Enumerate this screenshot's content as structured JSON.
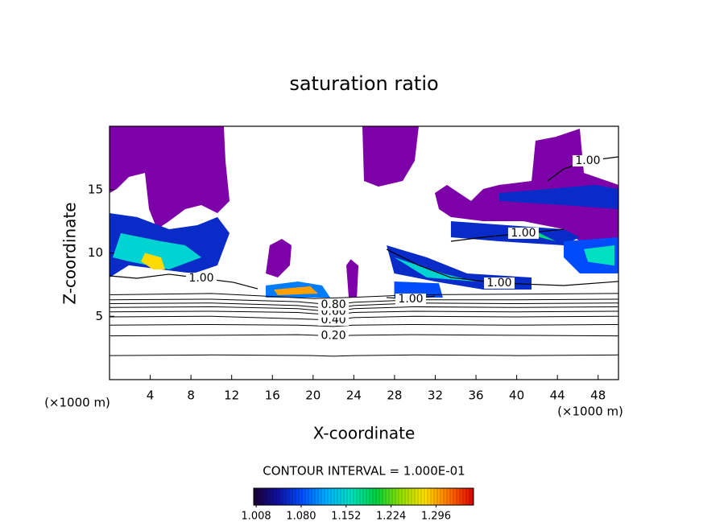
{
  "chart_data": {
    "type": "contour",
    "title": "saturation ratio",
    "x_label": "X-coordinate",
    "y_label": "Z-coordinate",
    "x_unit_left": "(×1000 m)",
    "x_unit_right": "(×1000 m)",
    "xlim": [
      0,
      50
    ],
    "ylim": [
      0,
      20
    ],
    "xticks": [
      4,
      8,
      12,
      16,
      20,
      24,
      28,
      32,
      36,
      40,
      44,
      48
    ],
    "yticks": [
      5,
      10,
      15
    ],
    "contour_interval_text": "CONTOUR INTERVAL = 1.000E-01",
    "colorbar_lim": [
      1.004,
      1.356
    ],
    "colorbar_ticks": [
      1.008,
      {
        "value": 1.08,
        "label": "1.080"
      },
      1.152,
      1.224,
      1.296
    ],
    "colormap": [
      "#1a0033",
      "#1010a0",
      "#0050ff",
      "#00b0ff",
      "#00e0c0",
      "#00d040",
      "#90e000",
      "#ffe000",
      "#ff7000",
      "#e00000"
    ],
    "below_color": "#7e00a8",
    "line_color": "#000000",
    "regions": [
      {
        "level": 1.0,
        "x": [
          0,
          11.23,
          11.39,
          11.79,
          10.6,
          9.02,
          7.44,
          5.85,
          4.67,
          3.88,
          3.48,
          1.9,
          0.71,
          0
        ],
        "y": [
          20,
          20,
          17.27,
          14.1,
          13.14,
          13.78,
          13.46,
          12.51,
          11.87,
          13.46,
          16.32,
          16,
          15.05,
          14.73
        ]
      },
      {
        "level": 1.0,
        "x": [
          24.84,
          25,
          26.42,
          28.8,
          29.98,
          30.38
        ],
        "y": [
          20,
          15.68,
          15.24,
          15.68,
          17.27,
          20
        ]
      },
      {
        "level": 1.0,
        "x": [
          33.23,
          33.15,
          34.34,
          35.52,
          36.71,
          38.29,
          41.46,
          41.85,
          43.83,
          46.2,
          46.6,
          50,
          50,
          50,
          46.2,
          44.62,
          40.66,
          36.71,
          33.54,
          32.36,
          31.96,
          33.15
        ],
        "y": [
          20,
          15.37,
          14.73,
          14.1,
          15.05,
          15.37,
          15.68,
          18.86,
          19.17,
          19.81,
          16.32,
          15.37,
          20,
          10.92,
          10.92,
          11.87,
          12.51,
          12.51,
          12.83,
          13.46,
          14.73,
          15.37
        ]
      },
      {
        "level": 1.0,
        "x": [
          15.35,
          15.74,
          16.93,
          17.88,
          17.72,
          16.53
        ],
        "y": [
          8.38,
          10.6,
          11.11,
          10.6,
          9.02,
          8.06
        ]
      },
      {
        "level": 1.0,
        "x": [
          23.26,
          23.7,
          24.45,
          24.3,
          23.5
        ],
        "y": [
          9.02,
          9.5,
          9.0,
          6.48,
          6.48
        ]
      },
      {
        "level": 1.06,
        "x": [
          0,
          2.69,
          5.85,
          8.62,
          10.6,
          11.79,
          10.6,
          8.23,
          5.06,
          1.9,
          0
        ],
        "y": [
          13.14,
          12.83,
          11.87,
          12.19,
          12.83,
          11.56,
          9.02,
          8.38,
          8.7,
          9.02,
          8.06
        ]
      },
      {
        "level": 1.15,
        "x": [
          1.11,
          5.06,
          7.44,
          9.02,
          5.85,
          1.9,
          0.32
        ],
        "y": [
          11.56,
          10.92,
          10.6,
          9.65,
          8.7,
          9.33,
          9.65
        ]
      },
      {
        "level": 1.28,
        "x": [
          3.48,
          5.06,
          5.46,
          4.27,
          3.09
        ],
        "y": [
          10.0,
          9.65,
          8.7,
          8.7,
          9.33
        ]
      },
      {
        "level": 1.1,
        "x": [
          15.35,
          18.51,
          20.89,
          21.68,
          15.35
        ],
        "y": [
          7.43,
          7.75,
          7.43,
          6.48,
          6.48
        ]
      },
      {
        "level": 1.3,
        "x": [
          16.14,
          19.7,
          20.49,
          16.53
        ],
        "y": [
          7.11,
          7.37,
          6.79,
          6.67
        ]
      },
      {
        "level": 1.06,
        "x": [
          27.22,
          31.17,
          35.13,
          41.46,
          41.46,
          36.71,
          31.96,
          27.97
        ],
        "y": [
          10.6,
          9.65,
          8.38,
          8.06,
          7.11,
          7.11,
          7.75,
          8.38
        ]
      },
      {
        "level": 1.15,
        "x": [
          27.97,
          32.75,
          35.92,
          31.17
        ],
        "y": [
          9.65,
          8.38,
          7.75,
          8.06
        ]
      },
      {
        "level": 1.08,
        "x": [
          27.97,
          32.36,
          32.75,
          27.97
        ],
        "y": [
          7.75,
          7.6,
          6.48,
          6.48
        ]
      },
      {
        "level": 1.06,
        "x": [
          33.54,
          39.08,
          44.62,
          46.2,
          44.62,
          38.29,
          33.54
        ],
        "y": [
          12.51,
          12.19,
          11.87,
          11.24,
          10.6,
          10.92,
          11.24
        ]
      },
      {
        "level": 1.18,
        "x": [
          39.87,
          42.25,
          43.83,
          42.25
        ],
        "y": [
          11.87,
          11.56,
          10.92,
          11.24
        ]
      },
      {
        "level": 1.08,
        "x": [
          44.62,
          50,
          50,
          46.2,
          44.62
        ],
        "y": [
          10.92,
          11.24,
          8.38,
          8.38,
          9.65
        ]
      },
      {
        "level": 1.16,
        "x": [
          46.6,
          49.6,
          49.6,
          47.0
        ],
        "y": [
          10.3,
          10.6,
          9.0,
          9.3
        ]
      },
      {
        "level": 1.06,
        "x": [
          38.29,
          43.04,
          47.78,
          50,
          50,
          44.62,
          38.29
        ],
        "y": [
          14.73,
          15.05,
          15.37,
          15.05,
          13.46,
          13.78,
          14.1
        ]
      }
    ],
    "contours": [
      {
        "level": 0.1,
        "x": [
          0,
          10,
          20,
          22,
          24,
          30,
          40,
          50
        ],
        "y": [
          1.9,
          1.95,
          1.9,
          1.85,
          1.9,
          1.95,
          1.9,
          1.95
        ]
      },
      {
        "level": 0.2,
        "label": "0.20",
        "x": [
          0,
          10,
          18.5,
          22,
          24,
          30,
          40,
          50
        ],
        "y": [
          3.45,
          3.5,
          3.55,
          3.45,
          3.5,
          3.55,
          3.5,
          3.45
        ]
      },
      {
        "level": 0.3,
        "x": [
          0,
          10,
          18.5,
          22,
          24,
          30,
          40,
          50
        ],
        "y": [
          4.3,
          4.35,
          4.3,
          4.2,
          4.3,
          4.35,
          4.3,
          4.35
        ]
      },
      {
        "level": 0.4,
        "label": "0.40",
        "x": [
          0,
          10,
          18.5,
          22,
          24,
          30,
          40,
          50
        ],
        "y": [
          4.95,
          5.0,
          4.8,
          4.7,
          4.9,
          5.0,
          4.95,
          5.0
        ]
      },
      {
        "level": 0.5,
        "x": [
          0,
          10,
          18.5,
          22,
          24,
          30,
          40,
          50
        ],
        "y": [
          5.35,
          5.4,
          5.3,
          5.1,
          5.3,
          5.4,
          5.35,
          5.4
        ]
      },
      {
        "level": 0.6,
        "label": "0.60",
        "x": [
          0,
          10,
          18.5,
          22,
          24,
          30,
          40,
          50
        ],
        "y": [
          5.7,
          5.75,
          5.6,
          5.35,
          5.6,
          5.75,
          5.7,
          5.75
        ]
      },
      {
        "level": 0.7,
        "x": [
          0,
          10,
          18.5,
          22,
          24,
          30,
          40,
          50
        ],
        "y": [
          6.0,
          6.05,
          5.85,
          5.6,
          5.85,
          6.05,
          6.0,
          6.05
        ]
      },
      {
        "level": 0.8,
        "label": "0.80",
        "x": [
          0,
          10,
          18.5,
          22,
          24,
          30,
          40,
          50
        ],
        "y": [
          6.3,
          6.35,
          6.15,
          5.9,
          6.1,
          6.3,
          6.3,
          6.35
        ]
      },
      {
        "level": 0.9,
        "x": [
          0,
          10,
          15,
          20,
          24,
          30,
          40,
          50
        ],
        "y": [
          6.7,
          6.8,
          6.6,
          6.4,
          6.5,
          6.7,
          6.75,
          6.8
        ]
      },
      {
        "level": 1.0,
        "label": "1.00",
        "x": [
          0,
          2.69,
          5.85,
          9.02,
          12.18,
          14.56
        ],
        "y": [
          8.19,
          8.0,
          8.32,
          8.0,
          7.68,
          7.17
        ]
      },
      {
        "level": 1.0,
        "label": "1.00",
        "x": [
          27.22,
          30.38,
          33.54,
          38.29,
          44.62,
          50
        ],
        "y": [
          10.29,
          9.02,
          8.06,
          7.62,
          7.43,
          7.75
        ]
      },
      {
        "level": 1.0,
        "label": "1.00",
        "x": [
          33.54,
          36.71,
          40.66,
          44.62
        ],
        "y": [
          10.92,
          11.24,
          11.56,
          11.87
        ]
      },
      {
        "level": 1.0,
        "label": "1.00",
        "x": [
          43.04,
          44.62,
          46.99,
          50
        ],
        "y": [
          15.68,
          16.63,
          17.27,
          17.59
        ]
      },
      {
        "level": 1.0,
        "label": "1.00",
        "x": [
          27.22,
          29.59,
          31.96
        ],
        "y": [
          6.48,
          6.35,
          6.6
        ]
      }
    ]
  }
}
